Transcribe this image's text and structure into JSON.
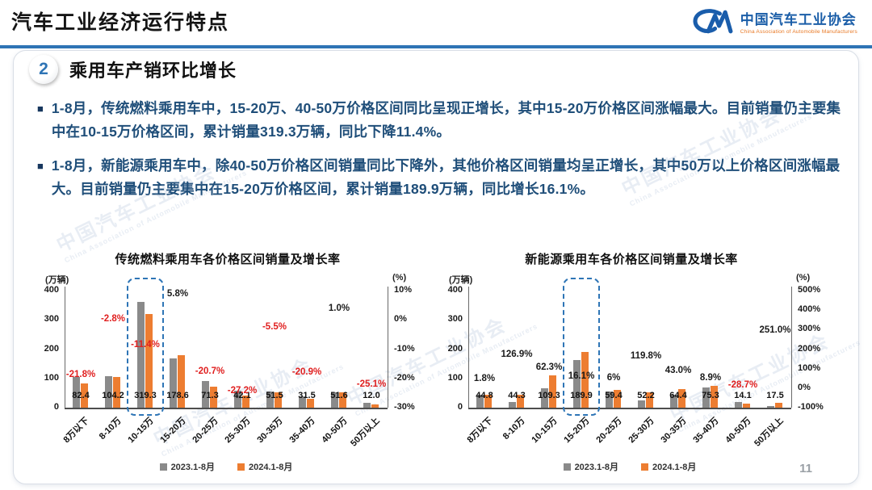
{
  "page": {
    "title": "汽车工业经济运行特点",
    "page_number": "11"
  },
  "logo": {
    "mark": "CM",
    "org_cn": "中国汽车工业协会",
    "org_en": "China Association of Automobile Manufacturers"
  },
  "section": {
    "number": "2",
    "title": "乘用车产销环比增长"
  },
  "bullets": [
    {
      "marker": "■",
      "text": "1-8月，传统燃料乘用车中，15-20万、40-50万价格区间同比呈现正增长，其中15-20万价格区间涨幅最大。目前销量仍主要集中在10-15万价格区间，累计销量319.3万辆，同比下降11.4%。"
    },
    {
      "marker": "■",
      "text": "1-8月，新能源乘用车中，除40-50万价格区间销量同比下降外，其他价格区间销量均呈正增长，其中50万以上价格区间涨幅最大。目前销量仍主要集中在15-20万价格区间，累计销量189.9万辆，同比增长16.1%。"
    }
  ],
  "watermark": {
    "text": "中国汽车工业协会",
    "subtext": "China Association of Automobile Manufacturers"
  },
  "colors": {
    "accent_blue": "#2e74b5",
    "text_blue": "#1f4e79",
    "bar_2023": "#8a8a8a",
    "bar_2024": "#ed7d31",
    "negative_red": "#e01f1f",
    "positive_black": "#1a1a1a",
    "highlight_dash": "#2e75b6"
  },
  "chart_data": [
    {
      "type": "bar",
      "title": "传统燃料乘用车各价格区间销量及增长率",
      "unit_left": "(万辆)",
      "unit_right": "(%)",
      "ylim_left": [
        0,
        400
      ],
      "left_ticks": [
        "400",
        "300",
        "200",
        "100",
        "0"
      ],
      "ylim_right": [
        -30,
        10
      ],
      "right_ticks": [
        "10%",
        "0%",
        "-10%",
        "-20%",
        "-30%"
      ],
      "grid": false,
      "legend_position": "bottom",
      "categories": [
        "8万以下",
        "8-10万",
        "10-15万",
        "15-20万",
        "20-25万",
        "25-30万",
        "30-35万",
        "35-40万",
        "40-50万",
        "50万以上"
      ],
      "series": [
        {
          "name": "2023.1-8月",
          "color": "#8a8a8a",
          "estimated_from_growth": true,
          "values": [
            105.4,
            107.2,
            360.4,
            168.8,
            89.9,
            57.8,
            54.5,
            39.8,
            51.1,
            16.0
          ]
        },
        {
          "name": "2024.1-8月",
          "color": "#ed7d31",
          "values": [
            82.4,
            104.2,
            319.3,
            178.6,
            71.3,
            42.1,
            51.5,
            31.5,
            51.6,
            12.0
          ]
        }
      ],
      "value_labels": [
        "82.4",
        "104.2",
        "319.3",
        "178.6",
        "71.3",
        "42.1",
        "51.5",
        "31.5",
        "51.6",
        "12.0"
      ],
      "growth_labels": [
        "-21.8%",
        "-2.8%",
        "-11.4%",
        "5.8%",
        "-20.7%",
        "-27.2%",
        "-5.5%",
        "-20.9%",
        "1.0%",
        "-25.1%"
      ],
      "growth_values": [
        -21.8,
        -2.8,
        -11.4,
        5.8,
        -20.7,
        -27.2,
        -5.5,
        -20.9,
        1.0,
        -25.1
      ],
      "highlight_index": 2,
      "legend": [
        "2023.1-8月",
        "2024.1-8月"
      ]
    },
    {
      "type": "bar",
      "title": "新能源乘用车各价格区间销量及增长率",
      "unit_left": "(万辆)",
      "unit_right": "(%)",
      "ylim_left": [
        0,
        400
      ],
      "left_ticks": [
        "400",
        "300",
        "200",
        "100",
        "0"
      ],
      "ylim_right": [
        -100,
        500
      ],
      "right_ticks": [
        "500%",
        "400%",
        "300%",
        "200%",
        "100%",
        "0%",
        "-100%"
      ],
      "grid": false,
      "legend_position": "bottom",
      "categories": [
        "8万以下",
        "8-10万",
        "10-15万",
        "15-20万",
        "20-25万",
        "25-30万",
        "30-35万",
        "35-40万",
        "40-50万",
        "50万以上"
      ],
      "series": [
        {
          "name": "2023.1-8月",
          "color": "#8a8a8a",
          "estimated_from_growth": true,
          "values": [
            44.0,
            19.5,
            67.3,
            163.6,
            56.0,
            23.7,
            45.0,
            69.1,
            19.8,
            5.0
          ]
        },
        {
          "name": "2024.1-8月",
          "color": "#ed7d31",
          "values": [
            44.8,
            44.3,
            109.3,
            189.9,
            59.4,
            52.2,
            64.4,
            75.3,
            14.1,
            17.5
          ]
        }
      ],
      "value_labels": [
        "44.8",
        "44.3",
        "109.3",
        "189.9",
        "59.4",
        "52.2",
        "64.4",
        "75.3",
        "14.1",
        "17.5"
      ],
      "growth_labels": [
        "1.8%",
        "126.9%",
        "62.3%",
        "16.1%",
        "6%",
        "119.8%",
        "43.0%",
        "8.9%",
        "-28.7%",
        "251.0%"
      ],
      "growth_values": [
        1.8,
        126.9,
        62.3,
        16.1,
        6,
        119.8,
        43.0,
        8.9,
        -28.7,
        251.0
      ],
      "highlight_index": 3,
      "legend": [
        "2023.1-8月",
        "2024.1-8月"
      ]
    }
  ]
}
